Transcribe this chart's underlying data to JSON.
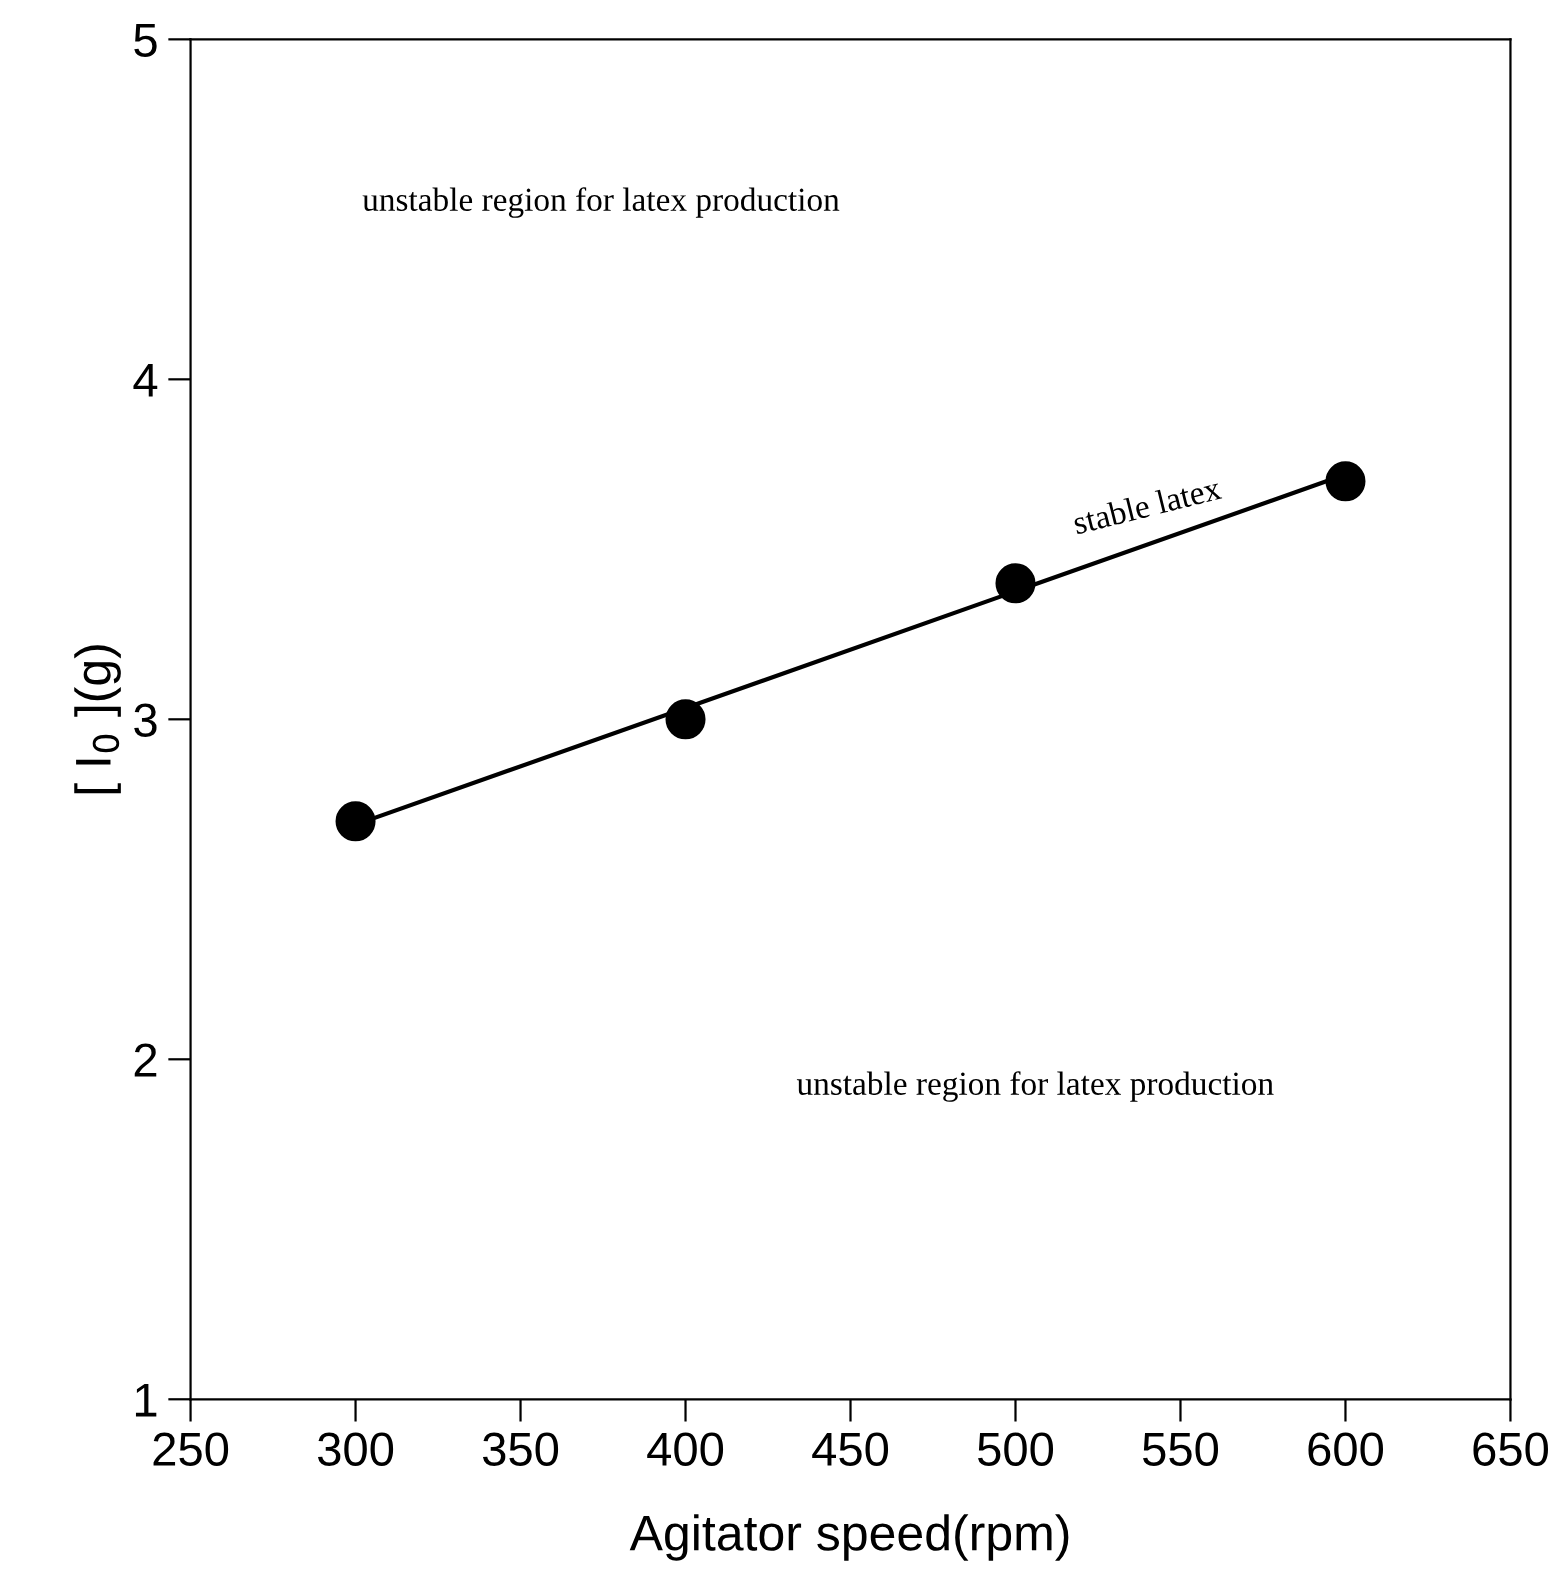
{
  "chart_data": {
    "type": "scatter",
    "xlabel": "Agitator speed(rpm)",
    "ylabel": "[ I$_{0}$ ](g)",
    "x": [
      300,
      400,
      500,
      600
    ],
    "series": [
      {
        "color": "#000000",
        "marker": "circle",
        "values": [
          2.7,
          3.0,
          3.4,
          3.7
        ]
      },
      {
        "type": "line",
        "color": "#000000",
        "x": [
          300,
          600
        ],
        "values": [
          2.69,
          3.72
        ]
      }
    ],
    "xlim": [
      250,
      650
    ],
    "xticks": [
      250,
      300,
      350,
      400,
      450,
      500,
      550,
      600,
      650
    ],
    "ylim": [
      1,
      5
    ],
    "yticks": [
      1,
      2,
      3,
      4,
      5
    ],
    "grid": false,
    "legend": false,
    "annotations": [
      "unstable region for latex production",
      "stable latex",
      "unstable region for latex production"
    ]
  }
}
